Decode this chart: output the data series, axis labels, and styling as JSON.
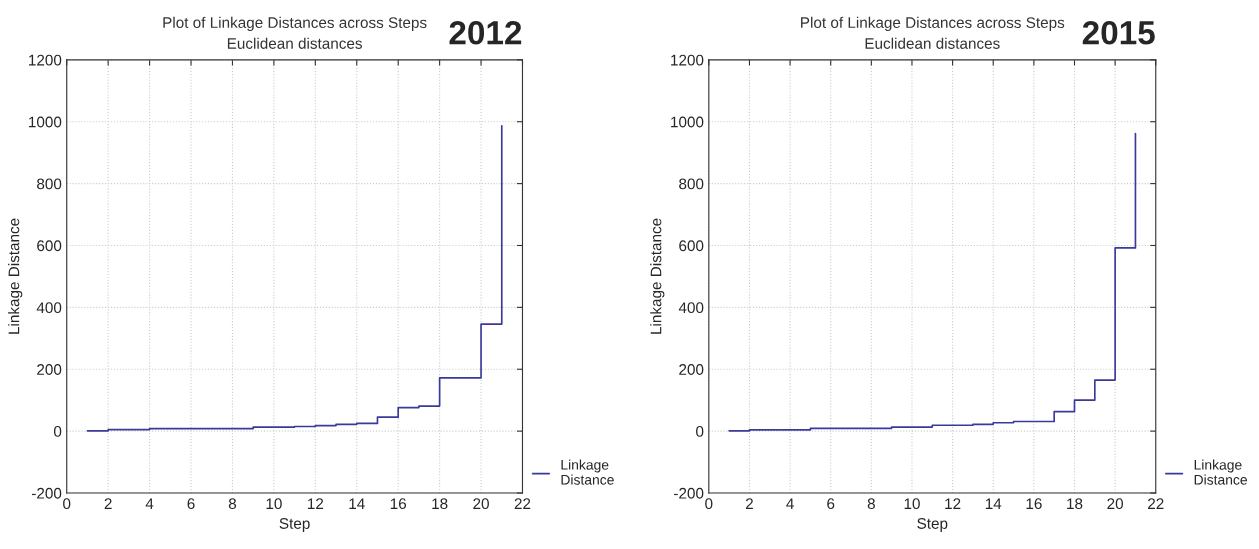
{
  "chart_data": [
    {
      "type": "step",
      "title": "Plot of Linkage Distances across Steps",
      "subtitle": "Euclidean distances",
      "xlabel": "Step",
      "ylabel": "Linkage Distance",
      "annotations": [
        "2012"
      ],
      "x": [
        1,
        2,
        3,
        4,
        5,
        6,
        7,
        8,
        9,
        10,
        11,
        12,
        13,
        14,
        15,
        16,
        17,
        18,
        19,
        20,
        21
      ],
      "series": [
        {
          "name": "Linkage\nDistance",
          "color": "#3a3a9a",
          "values": [
            1,
            5,
            5,
            8,
            8,
            8,
            8,
            8,
            13,
            13,
            15,
            18,
            22,
            25,
            45,
            76,
            81,
            172,
            172,
            346,
            987
          ]
        }
      ],
      "xlim": [
        0,
        22
      ],
      "xticks": [
        0,
        2,
        4,
        6,
        8,
        10,
        12,
        14,
        16,
        18,
        20,
        22
      ],
      "ylim": [
        -200,
        1200
      ],
      "yticks": [
        -200,
        0,
        200,
        400,
        600,
        800,
        1000,
        1200
      ],
      "grid": true,
      "legend": "bottom right",
      "marker": "none",
      "line_style": "solid"
    },
    {
      "type": "step",
      "title": "Plot of Linkage Distances across Steps",
      "subtitle": "Euclidean distances",
      "xlabel": "Step",
      "ylabel": "Linkage Distance",
      "annotations": [
        "2015"
      ],
      "x": [
        1,
        2,
        3,
        4,
        5,
        6,
        7,
        8,
        9,
        10,
        11,
        12,
        13,
        14,
        15,
        16,
        17,
        18,
        19,
        20,
        21
      ],
      "series": [
        {
          "name": "Linkage\nDistance",
          "color": "#3a3a9a",
          "values": [
            1,
            4,
            4,
            4,
            9,
            9,
            9,
            9,
            13,
            13,
            19,
            19,
            22,
            27,
            31,
            31,
            63,
            100,
            165,
            592,
            962
          ]
        }
      ],
      "xlim": [
        0,
        22
      ],
      "xticks": [
        0,
        2,
        4,
        6,
        8,
        10,
        12,
        14,
        16,
        18,
        20,
        22
      ],
      "ylim": [
        -200,
        1200
      ],
      "yticks": [
        -200,
        0,
        200,
        400,
        600,
        800,
        1000,
        1200
      ],
      "grid": true,
      "legend": "bottom right",
      "marker": "none",
      "line_style": "solid"
    }
  ]
}
